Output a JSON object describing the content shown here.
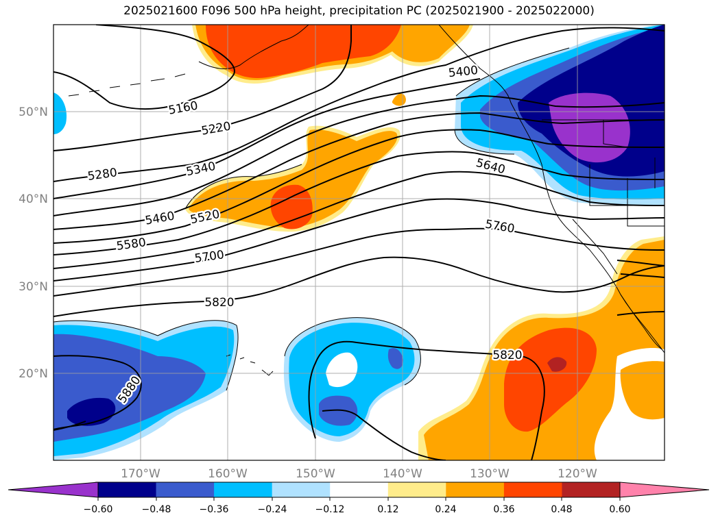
{
  "title": "2025021600 F096 500 hPa height, precipitation PC (2025021900 - 2025022000)",
  "map": {
    "lat_ticks": [
      "50°N",
      "40°N",
      "30°N",
      "20°N"
    ],
    "lon_ticks": [
      "170°W",
      "160°W",
      "150°W",
      "140°W",
      "130°W",
      "120°W"
    ],
    "gridlines": true
  },
  "height_contours": {
    "labels": [
      "5160",
      "5220",
      "5280",
      "5340",
      "5400",
      "5460",
      "5520",
      "5580",
      "5640",
      "5700",
      "5760",
      "5820",
      "5820",
      "5880"
    ]
  },
  "colorbar": {
    "ticks": [
      "−0.60",
      "−0.48",
      "−0.36",
      "−0.24",
      "−0.12",
      "0.12",
      "0.24",
      "0.36",
      "0.48",
      "0.60"
    ],
    "colors": [
      "#9932cc",
      "#00008b",
      "#3a5bcd",
      "#00bfff",
      "#b0e2ff",
      "#ffffff",
      "#ffec8b",
      "#ffa500",
      "#ff4500",
      "#b22222",
      "#ff82ab"
    ]
  }
}
